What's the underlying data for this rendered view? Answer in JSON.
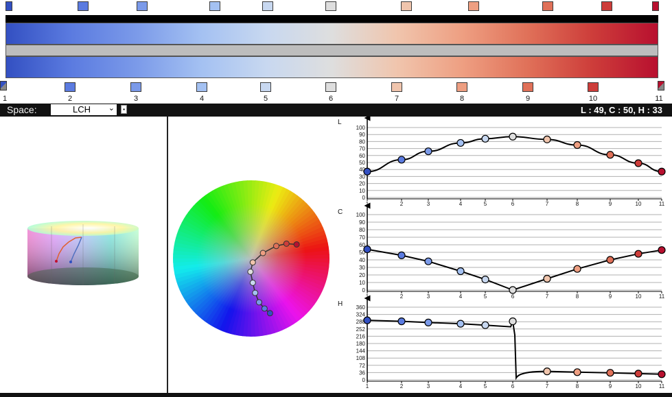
{
  "ramp": {
    "indices": [
      "1",
      "2",
      "3",
      "4",
      "5",
      "6",
      "7",
      "8",
      "9",
      "10",
      "11"
    ],
    "colors": [
      "#3350c2",
      "#5b7be0",
      "#7b9ae9",
      "#a4c1f2",
      "#c8d8f0",
      "#dedede",
      "#f0c5ad",
      "#ee9f82",
      "#e07159",
      "#cd3d3a",
      "#b8102f"
    ]
  },
  "toolbar": {
    "space_label": "Space:",
    "space_value": "LCH",
    "select_arrow": "⌄",
    "extra_button": "▪",
    "readout": "L : 49, C : 50, H : 33"
  },
  "charts": {
    "L": {
      "label": "L",
      "y_ticks": [
        "100",
        "90",
        "80",
        "70",
        "60",
        "50",
        "40",
        "30",
        "20",
        "10",
        "0"
      ],
      "x_ticks": [
        "1",
        "2",
        "3",
        "4",
        "5",
        "6",
        "7",
        "8",
        "9",
        "10",
        "11"
      ],
      "values": [
        37,
        54,
        66,
        78,
        84,
        87,
        83,
        75,
        61,
        49,
        37
      ]
    },
    "C": {
      "label": "C",
      "y_ticks": [
        "100",
        "90",
        "80",
        "70",
        "60",
        "50",
        "40",
        "30",
        "20",
        "10",
        "0"
      ],
      "x_ticks": [
        "1",
        "2",
        "3",
        "4",
        "5",
        "6",
        "7",
        "8",
        "9",
        "10",
        "11"
      ],
      "values": [
        54,
        46,
        38,
        25,
        14,
        0,
        15,
        28,
        40,
        48,
        53
      ]
    },
    "H": {
      "label": "H",
      "y_ticks": [
        "360",
        "324",
        "288",
        "252",
        "216",
        "180",
        "144",
        "108",
        "72",
        "36",
        "0"
      ],
      "x_ticks": [
        "1",
        "2",
        "3",
        "4",
        "5",
        "6",
        "7",
        "8",
        "9",
        "10",
        "11"
      ],
      "values": [
        295,
        290,
        284,
        278,
        271,
        290,
        42,
        38,
        35,
        31,
        28
      ]
    }
  },
  "wheel": {
    "path_points": [
      [
        0.58,
        -0.18
      ],
      [
        0.45,
        -0.19
      ],
      [
        0.32,
        -0.16
      ],
      [
        0.15,
        -0.07
      ],
      [
        0.02,
        0.05
      ],
      [
        -0.01,
        0.17
      ],
      [
        0.02,
        0.31
      ],
      [
        0.05,
        0.44
      ],
      [
        0.1,
        0.56
      ],
      [
        0.17,
        0.64
      ],
      [
        0.24,
        0.7
      ]
    ]
  }
}
